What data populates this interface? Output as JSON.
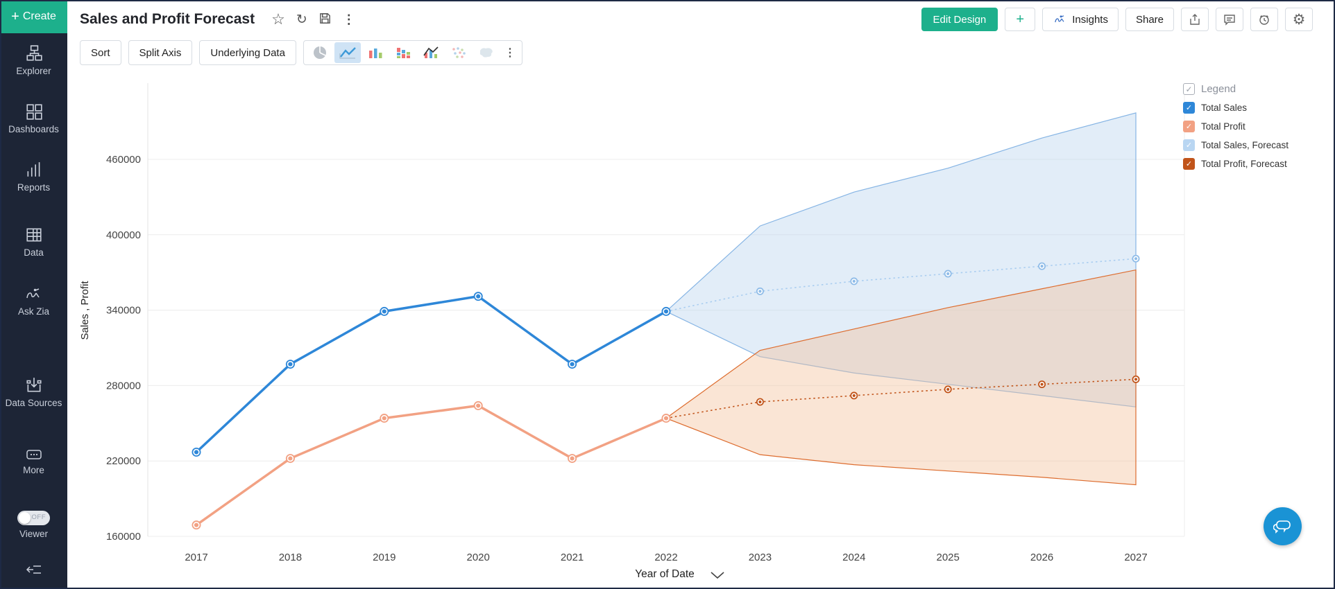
{
  "icons": {
    "plus": "+",
    "star": "☆",
    "refresh": "↻",
    "kebab": "⋮",
    "gear": "⚙",
    "check": "✓"
  },
  "theme": {
    "accent_green": "#1db08c",
    "sidebar_bg": "#1d2536",
    "selected_bg": "#cfe3f5",
    "zia_blue": "#1a93d5"
  },
  "sidebar": {
    "create_label": "Create",
    "items": [
      {
        "label": "Explorer"
      },
      {
        "label": "Dashboards"
      },
      {
        "label": "Reports"
      },
      {
        "label": "Data"
      },
      {
        "label": "Ask Zia"
      },
      {
        "label": "Data Sources"
      },
      {
        "label": "More"
      }
    ],
    "viewer_toggle": {
      "label": "Viewer",
      "state": "OFF"
    }
  },
  "header": {
    "title": "Sales and Profit Forecast",
    "actions": {
      "edit_design": "Edit Design",
      "add": "+",
      "insights": "Insights",
      "share": "Share"
    }
  },
  "toolbar": {
    "sort": "Sort",
    "split_axis": "Split Axis",
    "underlying_data": "Underlying Data",
    "chart_types": [
      "pie",
      "line",
      "bar",
      "stacked-bar",
      "combo",
      "scatter",
      "map"
    ],
    "selected_chart_type": "line"
  },
  "legend": {
    "title": "Legend",
    "items": [
      {
        "label": "Total Sales",
        "color": "#2e87d8",
        "checked": true
      },
      {
        "label": "Total Profit",
        "color": "#f2a183",
        "checked": true
      },
      {
        "label": "Total Sales, Forecast",
        "color": "#b9d6f2",
        "checked": true
      },
      {
        "label": "Total Profit, Forecast",
        "color": "#c1541a",
        "checked": true
      }
    ]
  },
  "chart_data": {
    "type": "line",
    "title": "Sales and Profit Forecast",
    "xlabel": "Year of Date",
    "ylabel": "Sales , Profit",
    "x": [
      2017,
      2018,
      2019,
      2020,
      2021,
      2022,
      2023,
      2024,
      2025,
      2026,
      2027
    ],
    "yticks": [
      160000,
      220000,
      280000,
      340000,
      400000,
      460000
    ],
    "ylim": [
      160000,
      505000
    ],
    "grid": true,
    "legend_position": "right",
    "series": [
      {
        "name": "Total Sales",
        "color": "#2e87d8",
        "line": "solid",
        "values": [
          227000,
          297000,
          339000,
          351000,
          297000,
          339000,
          null,
          null,
          null,
          null,
          null
        ]
      },
      {
        "name": "Total Profit",
        "color": "#f2a183",
        "line": "solid",
        "values": [
          169000,
          222000,
          254000,
          264000,
          222000,
          254000,
          null,
          null,
          null,
          null,
          null
        ]
      },
      {
        "name": "Total Sales, Forecast",
        "color": "#a9cdf0",
        "marker_color": "#8fbce8",
        "line": "dotted",
        "values": [
          null,
          null,
          null,
          null,
          null,
          339000,
          355000,
          363000,
          369000,
          375000,
          381000
        ]
      },
      {
        "name": "Total Profit, Forecast",
        "color": "#c1541a",
        "line": "dotted",
        "values": [
          null,
          null,
          null,
          null,
          null,
          254000,
          267000,
          272000,
          277000,
          281000,
          285000
        ]
      }
    ],
    "bands": [
      {
        "name": "Total Sales, Forecast Range",
        "stroke": "#85b4e4",
        "fill": "#b9d4ee",
        "upper": [
          null,
          null,
          null,
          null,
          null,
          339000,
          407000,
          434000,
          453000,
          477000,
          497000
        ],
        "lower": [
          null,
          null,
          null,
          null,
          null,
          339000,
          303000,
          290000,
          281000,
          272000,
          263000
        ]
      },
      {
        "name": "Total Profit, Forecast Range",
        "stroke": "#dd6c2e",
        "fill": "#f3c09c",
        "upper": [
          null,
          null,
          null,
          null,
          null,
          254000,
          308000,
          325000,
          342000,
          357000,
          372000
        ],
        "lower": [
          null,
          null,
          null,
          null,
          null,
          254000,
          225000,
          217000,
          212000,
          207000,
          201000
        ]
      }
    ]
  }
}
